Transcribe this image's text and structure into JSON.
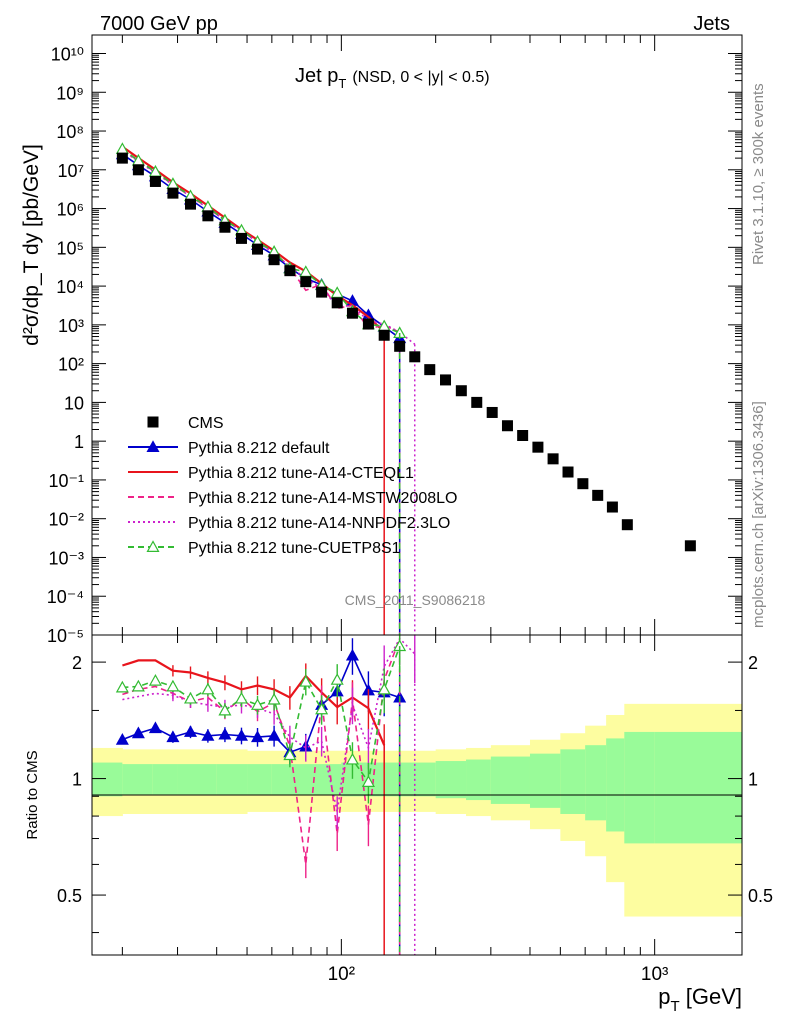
{
  "header": {
    "left": "7000 GeV pp",
    "right": "Jets"
  },
  "side_labels": {
    "rivet": "Rivet 3.1.10, ≥ 300k events",
    "mcplots": "mcplots.cern.ch [arXiv:1306.3436]"
  },
  "chart_data": {
    "type": "scatter",
    "title_main": "Jet p",
    "title_sub": "T",
    "title_cut": "(NSD,   0 < |y| < 0.5)",
    "watermark": "CMS_2011_S9086218",
    "xlabel_main": "p",
    "xlabel_sub": "T",
    "xlabel_unit": " [GeV]",
    "ylabel": "d²σ/dp_T dy [pb/GeV]",
    "ratio_ylabel": "Ratio to CMS",
    "xscale": "log",
    "xlim": [
      16,
      1900
    ],
    "ylim": [
      1e-05,
      30000000000
    ],
    "ratio_ylim": [
      0.35,
      2.35
    ],
    "x_ticks": [
      "10²",
      "10³"
    ],
    "y_ticks": [
      "10⁻⁵",
      "10⁻⁴",
      "10⁻³",
      "10⁻²",
      "10⁻¹",
      "1",
      "10",
      "10²",
      "10³",
      "10⁴",
      "10⁵",
      "10⁶",
      "10⁷",
      "10⁸",
      "10⁹",
      "10¹⁰"
    ],
    "ratio_ticks": [
      "0.5",
      "1",
      "2"
    ],
    "legend": [
      {
        "label": "CMS",
        "color": "#000000",
        "style": "marker-square"
      },
      {
        "label": "Pythia 8.212 default",
        "color": "#0000cc",
        "style": "solid-triangle"
      },
      {
        "label": "Pythia 8.212 tune-A14-CTEQL1",
        "color": "#e8141c",
        "style": "solid"
      },
      {
        "label": "Pythia 8.212 tune-A14-MSTW2008LO",
        "color": "#ee2288",
        "style": "dashed"
      },
      {
        "label": "Pythia 8.212 tune-A14-NNPDF2.3LO",
        "color": "#cc22cc",
        "style": "dotted"
      },
      {
        "label": "Pythia 8.212 tune-CUETP8S1",
        "color": "#33bb33",
        "style": "dashed-open-triangle"
      }
    ],
    "cms": {
      "x": [
        20,
        22.5,
        25.5,
        29,
        33,
        37.5,
        42.5,
        48,
        54,
        61,
        68.5,
        77,
        86.5,
        97,
        108.5,
        122,
        137,
        153.5,
        171.5,
        191.5,
        215,
        241.5,
        270.5,
        303,
        339,
        379,
        424,
        474,
        529,
        590,
        658,
        733,
        818,
        1300
      ],
      "y": [
        20000000,
        10000000,
        5000000,
        2500000,
        1300000,
        650000,
        330000,
        170000,
        90000,
        48000,
        25000,
        13000,
        7000,
        3700,
        2000,
        1050,
        540,
        280,
        150,
        70,
        38,
        20,
        10,
        5.5,
        2.5,
        1.4,
        0.7,
        0.35,
        0.16,
        0.08,
        0.04,
        0.02,
        0.007,
        0.002
      ]
    },
    "series": [
      {
        "name": "Pythia 8.212 default",
        "x": [
          20,
          22.5,
          25.5,
          29,
          33,
          37.5,
          42.5,
          48,
          54,
          61,
          68.5,
          77,
          86.5,
          97,
          108.5,
          122,
          137,
          153.5,
          171.5
        ],
        "ratio": [
          1.26,
          1.31,
          1.35,
          1.28,
          1.32,
          1.29,
          1.3,
          1.29,
          1.28,
          1.29,
          1.17,
          1.21,
          1.55,
          1.68,
          2.08,
          1.69,
          1.67,
          1.62,
          null
        ]
      },
      {
        "name": "Pythia 8.212 tune-A14-CTEQL1",
        "x": [
          20,
          22.5,
          25.5,
          29,
          33,
          37.5,
          42.5,
          48,
          54,
          61,
          68.5,
          77,
          86.5,
          97,
          108.5,
          122,
          137,
          153.5
        ],
        "ratio": [
          1.96,
          2.02,
          2.02,
          1.9,
          1.88,
          1.82,
          1.77,
          1.7,
          1.74,
          1.7,
          1.62,
          1.84,
          1.67,
          1.53,
          1.62,
          1.52,
          1.22,
          null
        ]
      },
      {
        "name": "Pythia 8.212 tune-A14-MSTW2008LO",
        "x": [
          20,
          22.5,
          25.5,
          29,
          33,
          37.5,
          42.5,
          48,
          54,
          61,
          68.5,
          77,
          86.5,
          97,
          108.5,
          122,
          137,
          153.5,
          171.5,
          191.5
        ],
        "ratio": [
          1.65,
          1.7,
          1.73,
          1.66,
          1.58,
          1.62,
          1.49,
          1.61,
          1.49,
          1.57,
          1.21,
          0.6,
          1.6,
          0.72,
          1.6,
          0.76,
          1.8,
          2.3,
          null,
          null
        ]
      },
      {
        "name": "Pythia 8.212 tune-A14-NNPDF2.3LO",
        "x": [
          20,
          22.5,
          25.5,
          29,
          33,
          37.5,
          42.5,
          48,
          54,
          61,
          68.5,
          77,
          86.5,
          97,
          108.5,
          122,
          137,
          153.5,
          171.5
        ],
        "ratio": [
          1.6,
          1.63,
          1.66,
          1.64,
          1.58,
          1.55,
          1.53,
          1.55,
          1.52,
          1.47,
          1.28,
          1.2,
          1.25,
          0.82,
          1.55,
          1.2,
          1.95,
          2.3,
          2.1
        ]
      },
      {
        "name": "Pythia 8.212 tune-CUETP8S1",
        "x": [
          20,
          22.5,
          25.5,
          29,
          33,
          37.5,
          42.5,
          48,
          54,
          61,
          68.5,
          77,
          86.5,
          97,
          108.5,
          122,
          137,
          153.5
        ],
        "ratio": [
          1.72,
          1.73,
          1.79,
          1.73,
          1.61,
          1.7,
          1.5,
          1.61,
          1.55,
          1.6,
          1.15,
          1.78,
          1.51,
          1.8,
          1.12,
          0.98,
          1.7,
          2.2
        ]
      }
    ],
    "ratio_bands": {
      "x_edges": [
        16,
        20,
        25,
        30,
        40,
        50,
        60,
        80,
        100,
        150,
        200,
        250,
        300,
        400,
        500,
        600,
        700,
        800,
        1000,
        1900
      ],
      "yellow_half": [
        0.2,
        0.19,
        0.19,
        0.19,
        0.19,
        0.18,
        0.18,
        0.18,
        0.18,
        0.18,
        0.19,
        0.2,
        0.22,
        0.26,
        0.31,
        0.37,
        0.46,
        0.56,
        0.56
      ],
      "green_half": [
        0.1,
        0.09,
        0.09,
        0.09,
        0.09,
        0.09,
        0.09,
        0.09,
        0.1,
        0.1,
        0.11,
        0.12,
        0.14,
        0.16,
        0.19,
        0.22,
        0.27,
        0.32,
        0.32
      ]
    }
  }
}
